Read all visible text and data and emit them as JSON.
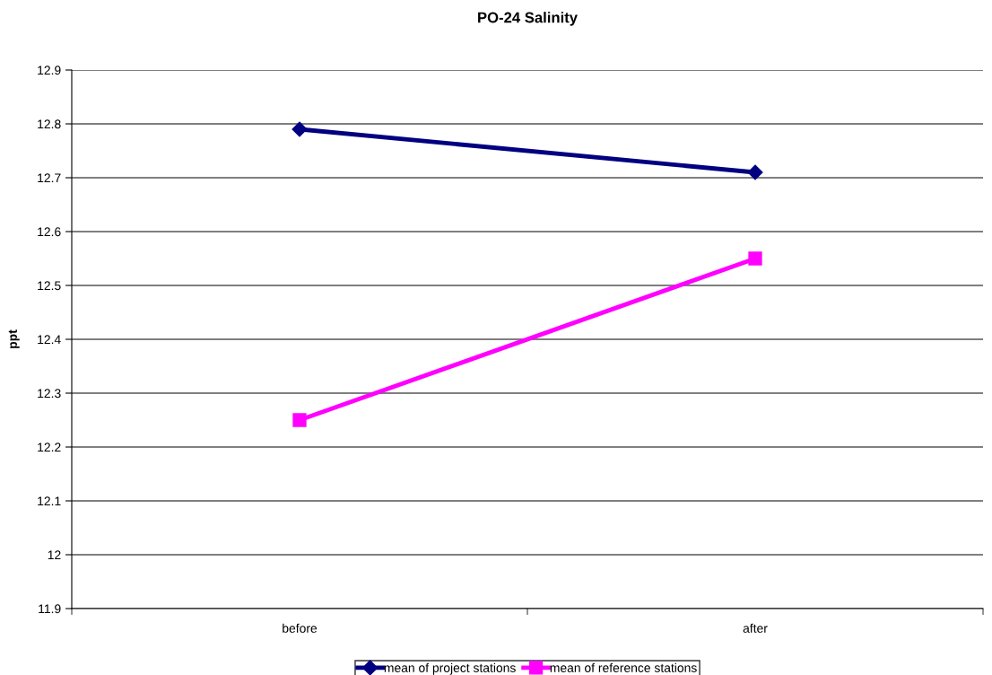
{
  "chart_data": {
    "type": "line",
    "title": "PO-24 Salinity",
    "ylabel": "ppt",
    "categories": [
      "before",
      "after"
    ],
    "series": [
      {
        "name": "mean of project stations",
        "color": "#000080",
        "values": [
          12.79,
          12.71
        ],
        "marker": "diamond"
      },
      {
        "name": "mean of reference stations",
        "color": "#ff00ff",
        "values": [
          12.25,
          12.55
        ],
        "marker": "square"
      }
    ],
    "ylim": [
      11.9,
      12.9
    ],
    "yticks": [
      11.9,
      12,
      12.1,
      12.2,
      12.3,
      12.4,
      12.5,
      12.6,
      12.7,
      12.8,
      12.9
    ],
    "grid": "y",
    "legend": "bottom",
    "line_style": "solid"
  }
}
